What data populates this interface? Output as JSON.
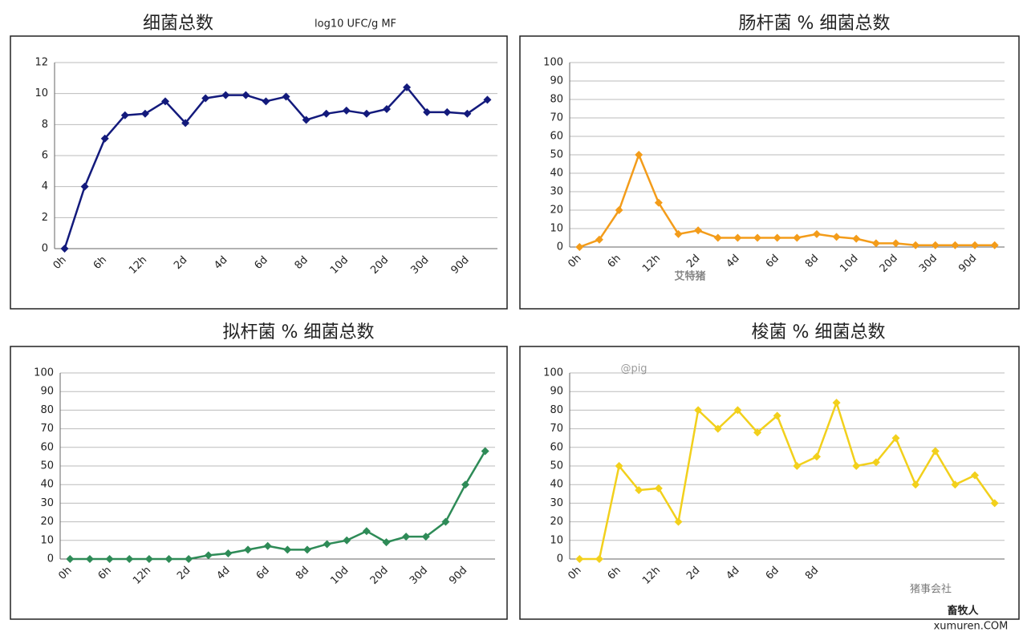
{
  "chart_data": [
    {
      "type": "line",
      "title": "细菌总数",
      "subtitle": "log10 UFC/g MF",
      "categories": [
        "0h",
        null,
        "6h",
        null,
        "12h",
        null,
        "2d",
        null,
        "4d",
        null,
        "6d",
        null,
        "8d",
        null,
        "10d",
        null,
        "20d",
        null,
        "30d",
        null,
        "90d",
        null
      ],
      "series": [
        {
          "name": "细菌总数",
          "color": "#131a7c",
          "values": [
            0,
            4,
            7.1,
            8.6,
            8.7,
            9.5,
            8.1,
            9.7,
            9.9,
            9.9,
            9.5,
            9.8,
            8.3,
            8.7,
            8.9,
            8.7,
            9,
            10.4,
            8.8,
            8.8,
            8.7,
            9.6
          ]
        }
      ],
      "ylim": [
        0,
        12
      ],
      "yticks": [
        0,
        2,
        4,
        6,
        8,
        10,
        12
      ],
      "grid": true
    },
    {
      "type": "line",
      "title": "肠杆菌 % 细菌总数",
      "categories": [
        "0h",
        null,
        "6h",
        null,
        "12h",
        null,
        "2d",
        null,
        "4d",
        null,
        "6d",
        null,
        "8d",
        null,
        "10d",
        null,
        "20d",
        null,
        "30d",
        null,
        "90d",
        null
      ],
      "series": [
        {
          "name": "肠杆菌",
          "color": "#f39c1a",
          "values": [
            0,
            4,
            20,
            50,
            24,
            7,
            9,
            5,
            5,
            5,
            5,
            5,
            7,
            5.5,
            4.5,
            2,
            2,
            1,
            1,
            1,
            1,
            1
          ]
        }
      ],
      "ylim": [
        0,
        100
      ],
      "yticks": [
        0,
        10,
        20,
        30,
        40,
        50,
        60,
        70,
        80,
        90,
        100
      ],
      "grid": true
    },
    {
      "type": "line",
      "title": "拟杆菌 % 细菌总数",
      "categories": [
        "0h",
        null,
        "6h",
        null,
        "12h",
        null,
        "2d",
        null,
        "4d",
        null,
        "6d",
        null,
        "8d",
        null,
        "10d",
        null,
        "20d",
        null,
        "30d",
        null,
        "90d",
        null
      ],
      "series": [
        {
          "name": "拟杆菌",
          "color": "#2e8b57",
          "values": [
            0,
            0,
            0,
            0,
            0,
            0,
            0,
            2,
            3,
            5,
            7,
            5,
            5,
            8,
            10,
            15,
            9,
            12,
            12,
            20,
            40,
            58
          ]
        }
      ],
      "ylim": [
        0,
        100
      ],
      "yticks": [
        0,
        10,
        20,
        30,
        40,
        50,
        60,
        70,
        80,
        90,
        100
      ],
      "grid": true
    },
    {
      "type": "line",
      "title": "梭菌 % 细菌总数",
      "categories": [
        "0h",
        null,
        "6h",
        null,
        "12h",
        null,
        "2d",
        null,
        "4d",
        null,
        "6d",
        null,
        "8d",
        null,
        null,
        null,
        null,
        null,
        null,
        null,
        null,
        null
      ],
      "series": [
        {
          "name": "梭菌",
          "color": "#f2d01c",
          "values": [
            0,
            0,
            50,
            37,
            38,
            20,
            80,
            70,
            80,
            68,
            77,
            50,
            55,
            84,
            50,
            52,
            65,
            40,
            58,
            40,
            45,
            30
          ]
        }
      ],
      "ylim": [
        0,
        100
      ],
      "yticks": [
        0,
        10,
        20,
        30,
        40,
        50,
        60,
        70,
        80,
        90,
        100
      ],
      "grid": true
    }
  ],
  "watermarks": [
    "艾特猪",
    "@pig",
    "猪事会社",
    "畜牧人",
    "xumuren.COM"
  ]
}
